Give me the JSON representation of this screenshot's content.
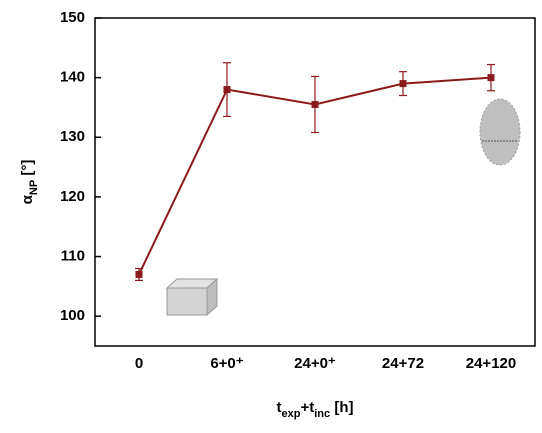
{
  "chart_data": {
    "type": "line",
    "x_label": [
      {
        "text": "t",
        "sub": false
      },
      {
        "text": "exp",
        "sub": true
      },
      {
        "text": "+t",
        "sub": false
      },
      {
        "text": "inc",
        "sub": true
      },
      {
        "text": " [h]",
        "sub": false
      }
    ],
    "y_label": [
      {
        "text": "α",
        "sub": false
      },
      {
        "text": "NP",
        "sub": true
      },
      {
        "text": " [°]",
        "sub": false
      }
    ],
    "categories": [
      "0",
      "6+0⁺",
      "24+0⁺",
      "24+72",
      "24+120"
    ],
    "series": [
      {
        "color": "#8b1a1a",
        "values": [
          107,
          138,
          135.5,
          139,
          140
        ],
        "errors": [
          1,
          4.5,
          4.7,
          2,
          2.2
        ]
      }
    ],
    "ylim": [
      95,
      150
    ],
    "yticks": [
      100,
      110,
      120,
      130,
      140,
      150
    ]
  }
}
